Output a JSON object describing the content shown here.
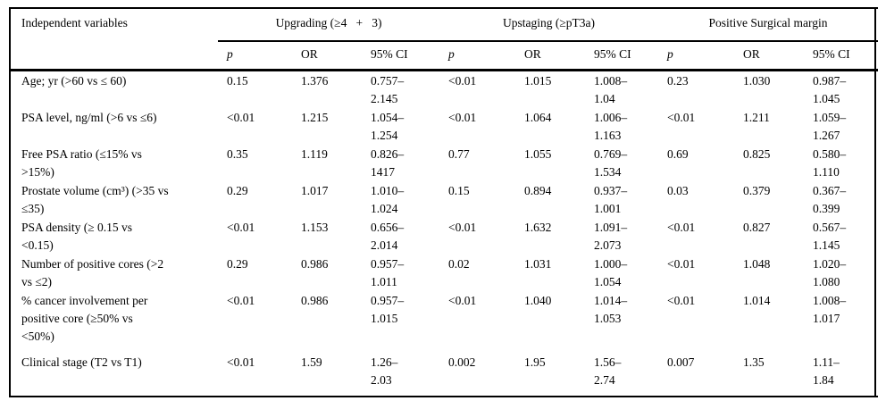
{
  "table": {
    "corner_header": "Independent variables",
    "groups": [
      {
        "label": "Upgrading (≥4   +   3)",
        "sub": [
          "p",
          "OR",
          "95% CI"
        ]
      },
      {
        "label": "Upstaging (≥pT3a)",
        "sub": [
          "p",
          "OR",
          "95% CI"
        ]
      },
      {
        "label": "Positive Surgical margin",
        "sub": [
          "p",
          "OR",
          "95% CI"
        ]
      }
    ],
    "rows": [
      {
        "label": "Age; yr (>60 vs ≤ 60)",
        "cells": [
          "0.15",
          "1.376",
          "0.757–\n2.145",
          "<0.01",
          "1.015",
          "1.008–\n1.04",
          "0.23",
          "1.030",
          "0.987–\n1.045"
        ]
      },
      {
        "label": "PSA level, ng/ml (>6 vs ≤6)",
        "cells": [
          "<0.01",
          "1.215",
          "1.054–\n1.254",
          "<0.01",
          "1.064",
          "1.006–\n1.163",
          "<0.01",
          "1.211",
          "1.059–\n1.267"
        ]
      },
      {
        "label": "Free PSA ratio (≤15% vs\n>15%)",
        "cells": [
          "0.35",
          "1.119",
          "0.826–\n1417",
          "0.77",
          "1.055",
          "0.769–\n1.534",
          "0.69",
          "0.825",
          "0.580–\n1.110"
        ]
      },
      {
        "label": "Prostate volume (cm³) (>35 vs\n≤35)",
        "cells": [
          "0.29",
          "1.017",
          "1.010–\n1.024",
          "0.15",
          "0.894",
          "0.937–\n1.001",
          "0.03",
          "0.379",
          "0.367–\n0.399"
        ]
      },
      {
        "label": "PSA density (≥ 0.15 vs\n<0.15)",
        "cells": [
          "<0.01",
          "1.153",
          "0.656–\n2.014",
          "<0.01",
          "1.632",
          "1.091–\n2.073",
          "<0.01",
          "0.827",
          "0.567–\n1.145"
        ]
      },
      {
        "label": "Number of positive cores (>2\nvs ≤2)",
        "cells": [
          "0.29",
          "0.986",
          "0.957–\n1.011",
          "0.02",
          "1.031",
          "1.000–\n1.054",
          "<0.01",
          "1.048",
          "1.020–\n1.080"
        ]
      },
      {
        "label": "% cancer involvement per\npositive core (≥50% vs\n<50%)",
        "cells": [
          "<0.01",
          "0.986",
          "0.957–\n1.015",
          "<0.01",
          "1.040",
          "1.014–\n1.053",
          "<0.01",
          "1.014",
          "1.008–\n1.017"
        ]
      },
      {
        "label": "Clinical stage (T2 vs T1)",
        "cells": [
          "<0.01",
          "1.59",
          "1.26–\n2.03",
          "0.002",
          "1.95",
          "1.56–\n2.74",
          "0.007",
          "1.35",
          "1.11–\n1.84"
        ]
      }
    ]
  }
}
